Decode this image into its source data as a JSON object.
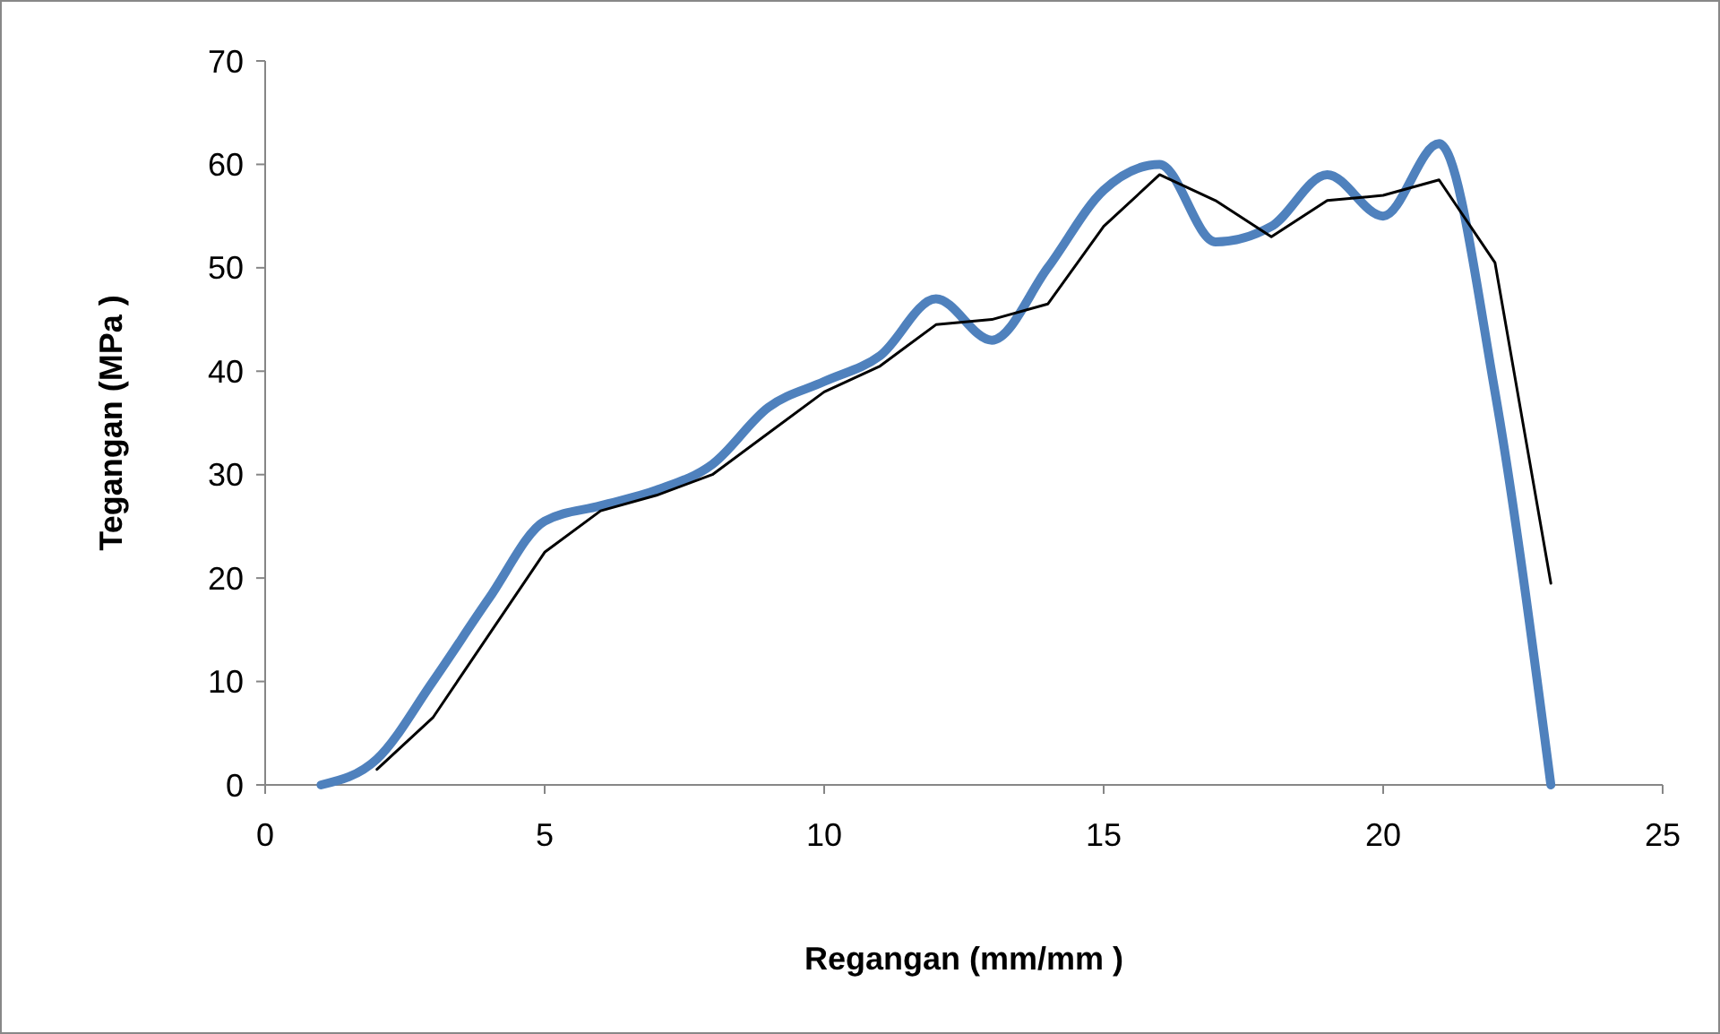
{
  "chart_data": {
    "type": "line",
    "xlabel": "Regangan (mm/mm )",
    "ylabel": "Tegangan (MPa )",
    "xlim": [
      0,
      25
    ],
    "xticks": [
      0,
      5,
      10,
      15,
      20,
      25
    ],
    "ylim": [
      0,
      70
    ],
    "yticks": [
      0,
      10,
      20,
      30,
      40,
      50,
      60,
      70
    ],
    "grid": false,
    "marker": "none",
    "series": [
      {
        "color": "#4f81bd",
        "x": [
          1,
          2,
          3,
          4,
          5,
          6,
          7,
          8,
          9,
          10,
          11,
          12,
          13,
          14,
          15,
          16,
          17,
          18,
          19,
          20,
          21,
          22,
          23
        ],
        "values": [
          0,
          2.5,
          10,
          18,
          25.5,
          27,
          28.5,
          31,
          36.5,
          39,
          41.5,
          47,
          43,
          50,
          57.5,
          60,
          52.5,
          54,
          59,
          55,
          62,
          38,
          0
        ]
      },
      {
        "color": "#000000",
        "x": [
          2,
          3,
          4,
          5,
          6,
          7,
          8,
          9,
          10,
          11,
          12,
          13,
          14,
          15,
          16,
          17,
          18,
          19,
          20,
          21,
          22,
          23
        ],
        "values": [
          1.5,
          6.5,
          14.5,
          22.5,
          26.5,
          28,
          30,
          34,
          38,
          40.5,
          44.5,
          45,
          46.5,
          54,
          59,
          56.5,
          53,
          56.5,
          57,
          58.5,
          50.5,
          19.5
        ]
      }
    ]
  }
}
